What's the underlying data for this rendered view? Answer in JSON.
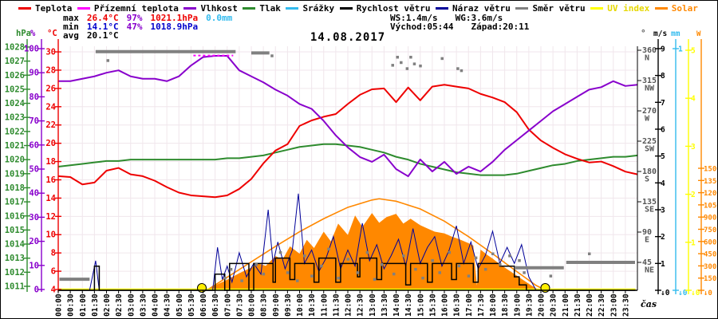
{
  "header": {
    "title": "14.08.2017",
    "legend": [
      {
        "label": "Teplota",
        "color": "#ee0000"
      },
      {
        "label": "Přízemní teplota",
        "color": "#ff00ff"
      },
      {
        "label": "Vlhkost",
        "color": "#8800cc"
      },
      {
        "label": "Tlak",
        "color": "#2e8b2e"
      },
      {
        "label": "Srážky",
        "color": "#33bbee"
      },
      {
        "label": "Rychlost větru",
        "color": "#000000"
      },
      {
        "label": "Náraz větru",
        "color": "#000099"
      },
      {
        "label": "Směr větru",
        "color": "#808080"
      },
      {
        "label": "UV index",
        "color": "#ffff00"
      },
      {
        "label": "Solar",
        "color": "#ff8800"
      }
    ],
    "stats": {
      "max_label": "max",
      "max_temp": "26.4°C",
      "max_hum": "97%",
      "max_pres": "1021.1hPa",
      "rain": "0.0mm",
      "min_label": "min",
      "min_temp": "14.1°C",
      "min_hum": "47%",
      "min_pres": "1018.9hPa",
      "avg_label": "avg",
      "avg_temp": "20.1°C",
      "wind_speed": "WS:1.4m/s",
      "wind_gust": "WG:3.6m/s",
      "sunrise": "Východ:05:44",
      "sunset": "Západ:20:11"
    }
  },
  "chart_data": {
    "type": "line",
    "title": "14.08.2017",
    "xlabel": "čas",
    "grid": true,
    "x_range_hours": [
      0,
      24
    ],
    "x_ticks": [
      "00:00",
      "00:30",
      "01:00",
      "01:30",
      "02:00",
      "02:30",
      "03:00",
      "03:30",
      "04:00",
      "04:30",
      "05:00",
      "05:30",
      "06:00",
      "06:30",
      "07:00",
      "07:30",
      "08:00",
      "08:30",
      "09:00",
      "09:30",
      "10:00",
      "10:30",
      "11:00",
      "11:30",
      "12:00",
      "12:30",
      "13:00",
      "13:30",
      "14:00",
      "14:30",
      "15:00",
      "15:30",
      "16:00",
      "16:30",
      "17:00",
      "17:30",
      "18:00",
      "18:30",
      "19:00",
      "19:30",
      "20:00",
      "20:30",
      "21:00",
      "21:30",
      "22:00",
      "22:30",
      "23:00",
      "23:30"
    ],
    "axes": {
      "pressure_hpa": {
        "header": "hPa",
        "min": 1011,
        "max": 1028,
        "step": 1,
        "color": "#2e8b2e",
        "side": "left"
      },
      "humidity_pct": {
        "header": "%",
        "min": 0,
        "max": 100,
        "step": 10,
        "color": "#8800cc",
        "side": "left"
      },
      "temp_c": {
        "header": "°C",
        "min": 4,
        "max": 30,
        "step": 2,
        "color": "#ee0000",
        "side": "left"
      },
      "wind_dir_deg": {
        "header": "°",
        "ticks": [
          [
            360,
            "N"
          ],
          [
            315,
            "NW"
          ],
          [
            270,
            "W"
          ],
          [
            225,
            "SW"
          ],
          [
            180,
            "S"
          ],
          [
            135,
            "SE"
          ],
          [
            90,
            "E"
          ],
          [
            45,
            "NE"
          ]
        ],
        "color": "#555555",
        "side": "right"
      },
      "wind_ms": {
        "header": "m/s",
        "min": 0,
        "max": 9,
        "step": 1,
        "color": "#000000",
        "side": "right"
      },
      "rain_mm": {
        "header": "mm",
        "min": 0,
        "max": 1,
        "step": 1,
        "color": "#33bbee",
        "side": "right"
      },
      "uv_index": {
        "header": "",
        "min": 0,
        "max": 5,
        "step": 1,
        "color": "#ffff00",
        "side": "right"
      },
      "solar_w": {
        "header": "W",
        "min": 0,
        "max": 1500,
        "step": 150,
        "color": "#ff8800",
        "side": "right"
      }
    },
    "sampled_series_t_start_h": 0,
    "sampled_series_t_step_h": 0.5,
    "series": {
      "teplota_c": [
        16.4,
        16.3,
        15.5,
        15.7,
        17.0,
        17.3,
        16.6,
        16.4,
        15.9,
        15.2,
        14.6,
        14.3,
        14.2,
        14.1,
        14.3,
        15.0,
        16.1,
        17.8,
        19.2,
        19.9,
        21.9,
        22.5,
        22.9,
        23.2,
        24.3,
        25.3,
        25.9,
        26.0,
        24.5,
        26.1,
        24.7,
        26.2,
        26.4,
        26.2,
        26.0,
        25.4,
        25.0,
        24.5,
        23.4,
        21.5,
        20.3,
        19.5,
        18.8,
        18.3,
        17.9,
        18.0,
        17.5,
        16.9,
        16.6
      ],
      "vlhkost_pct": [
        86.5,
        86.5,
        87.5,
        88.5,
        90,
        91,
        88.5,
        87.5,
        87.5,
        86.5,
        88.5,
        93,
        96.5,
        97,
        97,
        91,
        88.5,
        86,
        83,
        80.5,
        77,
        75,
        70,
        64,
        59,
        55,
        53,
        56,
        50,
        47,
        54,
        49,
        53,
        48,
        51,
        49,
        53,
        58,
        62,
        66,
        70,
        74,
        77,
        80,
        83,
        84,
        86.5,
        84.5,
        85
      ],
      "tlak_hpa": [
        1019.5,
        1019.6,
        1019.7,
        1019.8,
        1019.9,
        1019.9,
        1020.0,
        1020.0,
        1020.0,
        1020.0,
        1020.0,
        1020.0,
        1020.0,
        1020.0,
        1020.1,
        1020.1,
        1020.2,
        1020.3,
        1020.5,
        1020.7,
        1020.9,
        1021.0,
        1021.1,
        1021.1,
        1021.0,
        1020.9,
        1020.7,
        1020.5,
        1020.2,
        1020.0,
        1019.7,
        1019.5,
        1019.3,
        1019.1,
        1019.0,
        1018.9,
        1018.9,
        1018.9,
        1019.0,
        1019.2,
        1019.4,
        1019.6,
        1019.7,
        1019.9,
        1020.0,
        1020.1,
        1020.2,
        1020.2,
        1020.3
      ],
      "prizemni_teplota_c": [
        [
          5.6,
          29.6
        ],
        [
          7.25,
          29.6
        ]
      ],
      "srazky_mm": [
        [
          0,
          0
        ],
        [
          23.92,
          0
        ]
      ],
      "uv_index": [
        [
          0,
          0.02
        ],
        [
          23.92,
          0.02
        ]
      ],
      "rychlost_vetru_ms": [
        [
          0,
          0
        ],
        [
          1.4,
          0
        ],
        [
          1.5,
          0.9
        ],
        [
          1.7,
          0
        ],
        [
          6.4,
          0
        ],
        [
          6.5,
          0.6
        ],
        [
          6.9,
          0
        ],
        [
          7.1,
          1.0
        ],
        [
          7.9,
          0
        ],
        [
          8.1,
          1.0
        ],
        [
          8.9,
          0.3
        ],
        [
          9.0,
          1.2
        ],
        [
          9.6,
          0.4
        ],
        [
          9.8,
          1.0
        ],
        [
          10.6,
          0.3
        ],
        [
          10.8,
          1.2
        ],
        [
          11.5,
          0.3
        ],
        [
          11.7,
          1.0
        ],
        [
          12.4,
          0.5
        ],
        [
          12.5,
          1.2
        ],
        [
          13.2,
          0.4
        ],
        [
          13.4,
          1.0
        ],
        [
          14.4,
          0.2
        ],
        [
          14.6,
          1.0
        ],
        [
          15.3,
          0.3
        ],
        [
          15.5,
          1.0
        ],
        [
          16.3,
          0.4
        ],
        [
          16.5,
          1.0
        ],
        [
          17.2,
          0.3
        ],
        [
          17.4,
          1.0
        ],
        [
          18.3,
          0.9
        ],
        [
          18.9,
          0.5
        ],
        [
          19.1,
          0.2
        ],
        [
          19.4,
          0
        ],
        [
          23.92,
          0
        ]
      ],
      "naraz_vetru_ms": [
        [
          0,
          0
        ],
        [
          1.3,
          0
        ],
        [
          1.55,
          1.1
        ],
        [
          1.7,
          0
        ],
        [
          6.4,
          0
        ],
        [
          6.6,
          1.6
        ],
        [
          6.8,
          0.4
        ],
        [
          7.0,
          0.9
        ],
        [
          7.2,
          0.3
        ],
        [
          7.5,
          1.4
        ],
        [
          7.8,
          0.5
        ],
        [
          8.1,
          1.0
        ],
        [
          8.4,
          0.6
        ],
        [
          8.7,
          3.0
        ],
        [
          8.9,
          1.0
        ],
        [
          9.1,
          1.8
        ],
        [
          9.4,
          0.8
        ],
        [
          9.7,
          1.5
        ],
        [
          9.95,
          3.6
        ],
        [
          10.2,
          1.0
        ],
        [
          10.5,
          1.5
        ],
        [
          10.8,
          0.7
        ],
        [
          11.1,
          1.2
        ],
        [
          11.4,
          2.0
        ],
        [
          11.7,
          0.8
        ],
        [
          12.0,
          1.5
        ],
        [
          12.3,
          0.9
        ],
        [
          12.6,
          2.5
        ],
        [
          12.9,
          1.1
        ],
        [
          13.2,
          1.7
        ],
        [
          13.5,
          0.8
        ],
        [
          13.8,
          1.3
        ],
        [
          14.1,
          1.9
        ],
        [
          14.4,
          0.9
        ],
        [
          14.7,
          2.3
        ],
        [
          15.0,
          1.0
        ],
        [
          15.3,
          1.6
        ],
        [
          15.6,
          2.0
        ],
        [
          15.9,
          0.9
        ],
        [
          16.2,
          1.5
        ],
        [
          16.5,
          2.4
        ],
        [
          16.8,
          1.0
        ],
        [
          17.1,
          1.8
        ],
        [
          17.4,
          0.8
        ],
        [
          17.7,
          1.3
        ],
        [
          18.0,
          2.2
        ],
        [
          18.3,
          1.0
        ],
        [
          18.6,
          1.6
        ],
        [
          18.9,
          1.0
        ],
        [
          19.2,
          1.7
        ],
        [
          19.5,
          0.5
        ],
        [
          19.8,
          0
        ],
        [
          23.92,
          0
        ]
      ],
      "solar_w": [
        [
          5.9,
          0
        ],
        [
          6.2,
          20
        ],
        [
          6.5,
          60
        ],
        [
          7,
          130
        ],
        [
          7.5,
          210
        ],
        [
          8,
          280
        ],
        [
          8.3,
          330
        ],
        [
          8.6,
          300
        ],
        [
          9,
          420
        ],
        [
          9.3,
          380
        ],
        [
          9.6,
          540
        ],
        [
          10,
          450
        ],
        [
          10.3,
          620
        ],
        [
          10.6,
          520
        ],
        [
          11,
          720
        ],
        [
          11.3,
          600
        ],
        [
          11.6,
          820
        ],
        [
          12,
          680
        ],
        [
          12.3,
          920
        ],
        [
          12.6,
          780
        ],
        [
          13,
          950
        ],
        [
          13.3,
          830
        ],
        [
          13.6,
          900
        ],
        [
          14,
          940
        ],
        [
          14.3,
          820
        ],
        [
          14.6,
          880
        ],
        [
          15,
          800
        ],
        [
          15.3,
          760
        ],
        [
          15.6,
          720
        ],
        [
          16,
          700
        ],
        [
          16.3,
          660
        ],
        [
          16.6,
          630
        ],
        [
          17,
          580
        ],
        [
          17.2,
          550
        ],
        [
          17.35,
          60
        ],
        [
          17.5,
          500
        ],
        [
          17.8,
          430
        ],
        [
          18,
          390
        ],
        [
          18.3,
          320
        ],
        [
          18.6,
          260
        ],
        [
          19,
          180
        ],
        [
          19.3,
          120
        ],
        [
          19.6,
          60
        ],
        [
          19.9,
          10
        ],
        [
          20.1,
          0
        ]
      ],
      "solar_clear_sky_w": [
        [
          6.15,
          0
        ],
        [
          7,
          160
        ],
        [
          8,
          350
        ],
        [
          9,
          540
        ],
        [
          10,
          720
        ],
        [
          11,
          880
        ],
        [
          12,
          1020
        ],
        [
          13,
          1110
        ],
        [
          13.3,
          1125
        ],
        [
          14,
          1095
        ],
        [
          15,
          1000
        ],
        [
          16,
          850
        ],
        [
          17,
          660
        ],
        [
          18,
          450
        ],
        [
          19,
          230
        ],
        [
          19.8,
          60
        ],
        [
          20.2,
          0
        ]
      ]
    },
    "wind_direction": {
      "segments_deg": [
        [
          0.05,
          1.3,
          20
        ],
        [
          1.55,
          7.35,
          358
        ],
        [
          8.0,
          8.75,
          356
        ],
        [
          18.9,
          20.95,
          37
        ],
        [
          21.05,
          23.9,
          45
        ]
      ],
      "dots_deg": [
        [
          2.05,
          345
        ],
        [
          8.85,
          352
        ],
        [
          13.85,
          338
        ],
        [
          14.05,
          350
        ],
        [
          14.2,
          342
        ],
        [
          14.45,
          333
        ],
        [
          14.6,
          350
        ],
        [
          14.75,
          340
        ],
        [
          15.0,
          337
        ],
        [
          15.9,
          348
        ],
        [
          16.55,
          333
        ],
        [
          16.7,
          330
        ],
        [
          6.9,
          22
        ],
        [
          7.15,
          35
        ],
        [
          7.6,
          18
        ],
        [
          8.2,
          42
        ],
        [
          8.5,
          28
        ],
        [
          9.2,
          60
        ],
        [
          9.5,
          30
        ],
        [
          9.9,
          18
        ],
        [
          10.2,
          55
        ],
        [
          10.5,
          25
        ],
        [
          10.9,
          40
        ],
        [
          11.2,
          65
        ],
        [
          11.6,
          22
        ],
        [
          12.0,
          50
        ],
        [
          12.4,
          30
        ],
        [
          12.8,
          60
        ],
        [
          13.1,
          20
        ],
        [
          13.4,
          42
        ],
        [
          13.9,
          28
        ],
        [
          14.3,
          55
        ],
        [
          14.8,
          35
        ],
        [
          15.1,
          22
        ],
        [
          15.5,
          48
        ],
        [
          15.8,
          30
        ],
        [
          16.2,
          60
        ],
        [
          16.6,
          40
        ],
        [
          17.0,
          25
        ],
        [
          17.3,
          52
        ],
        [
          17.7,
          35
        ],
        [
          18.0,
          58
        ],
        [
          18.3,
          42
        ],
        [
          18.7,
          55
        ],
        [
          19.1,
          48
        ],
        [
          19.3,
          30
        ],
        [
          20.4,
          25
        ],
        [
          22.0,
          58
        ]
      ]
    },
    "sun_marker_times_h": [
      5.95,
      20.18
    ],
    "colors": {
      "teplota": "#ee0000",
      "prizemni": "#ff00ff",
      "vlhkost": "#8800cc",
      "tlak": "#2e8b2e",
      "srazky": "#33bbee",
      "rychlost": "#000000",
      "naraz": "#000099",
      "smer": "#808080",
      "uv": "#ffff00",
      "solar": "#ff8800",
      "grid": "#f0e6ec",
      "sun_marker": "#ffee00"
    }
  }
}
